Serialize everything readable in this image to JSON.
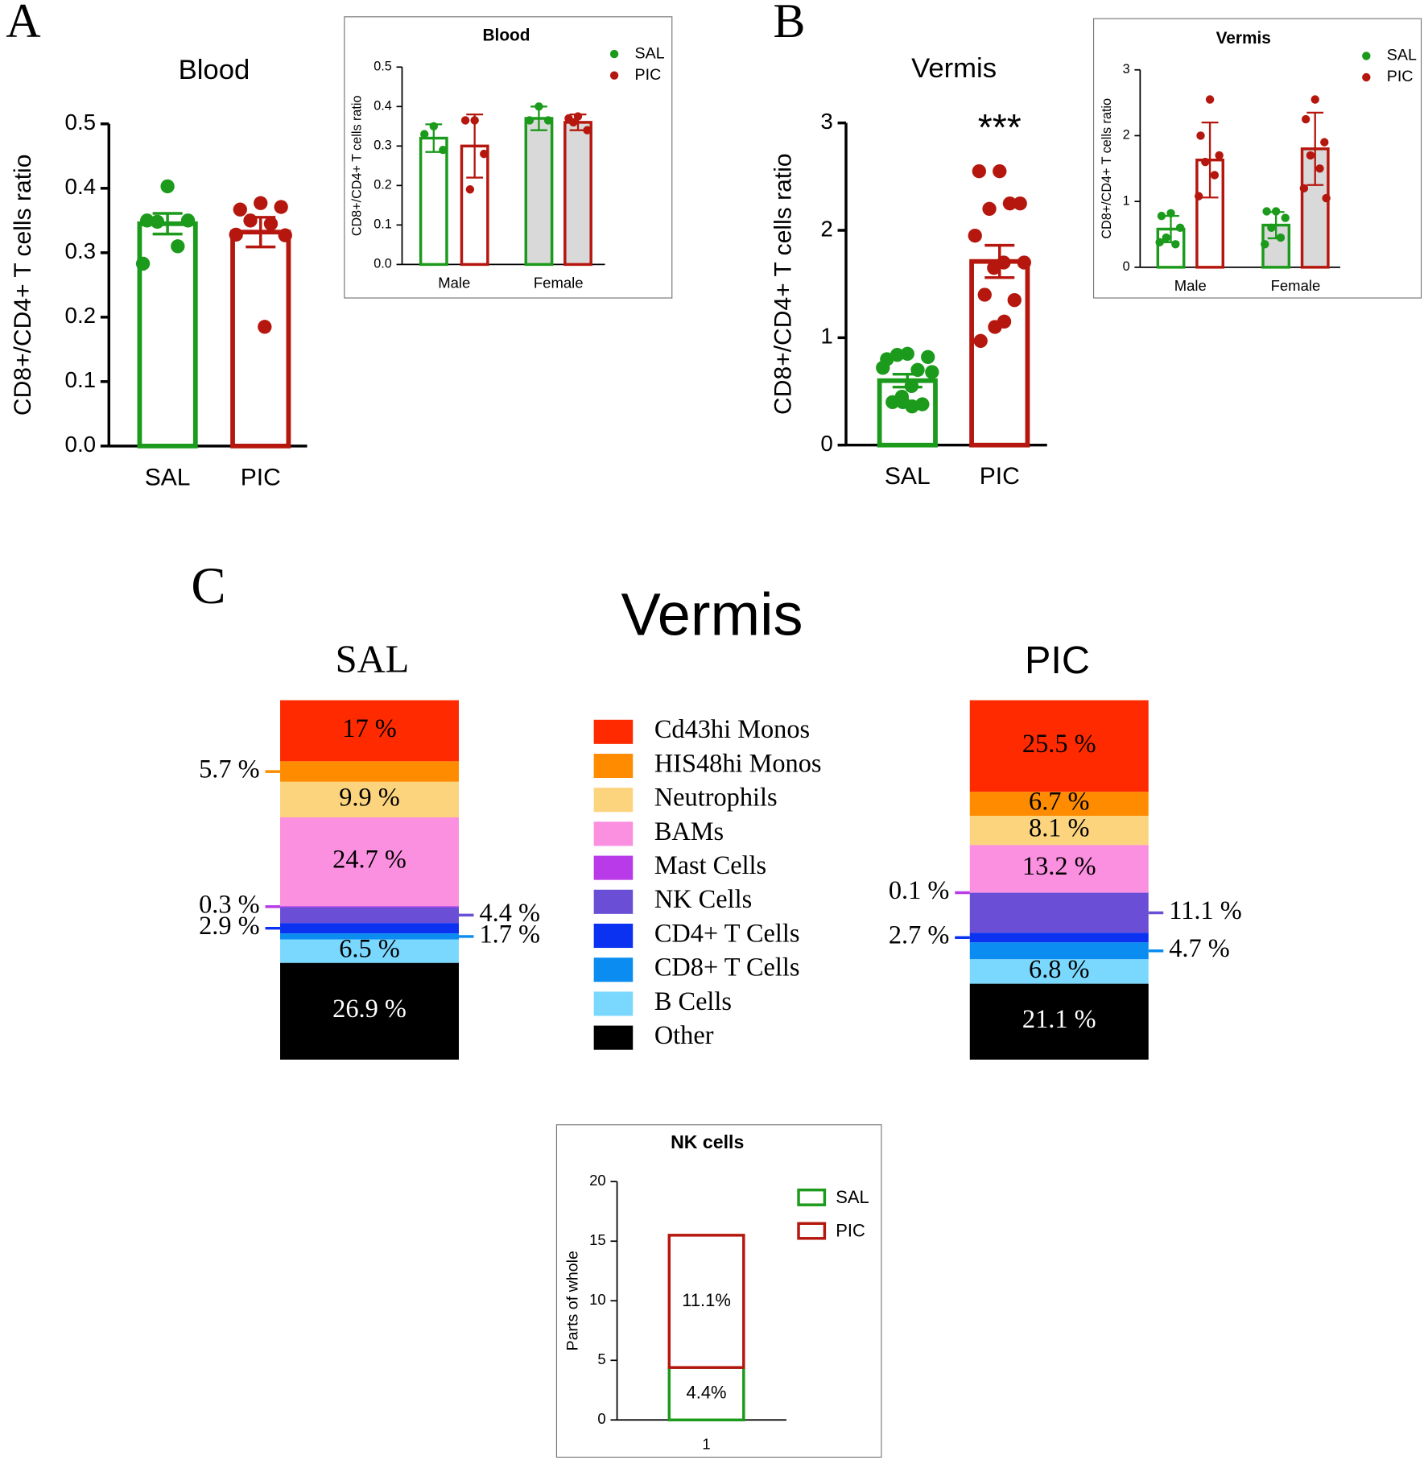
{
  "chart_data": [
    {
      "type": "bar-scatter",
      "panel": "A",
      "title": "Blood",
      "y_label": "CD8+/CD4+ T cells ratio",
      "categories": [
        "SAL",
        "PIC"
      ],
      "colors": [
        "#1b9a1b",
        "#b5170e"
      ],
      "values": [
        0.345,
        0.332
      ],
      "errors": [
        0.016,
        0.023
      ],
      "points": [
        [
          0.403,
          0.35,
          0.35,
          0.348,
          0.31,
          0.283
        ],
        [
          0.377,
          0.367,
          0.371,
          0.35,
          0.345,
          0.328,
          0.327,
          0.185
        ]
      ],
      "ylim": [
        0,
        0.5
      ],
      "yticks": [
        {
          "value": 0,
          "label": "0.0"
        },
        0.1,
        0.2,
        0.3,
        0.4,
        0.5
      ]
    },
    {
      "type": "grouped-bar-scatter",
      "title": "Blood",
      "y_label": "CD8+/CD4+ T cells ratio",
      "categories": [
        "Male",
        "Female"
      ],
      "category_fills": [
        "#ffffff",
        "#d9d9d9"
      ],
      "series": [
        {
          "name": "SAL",
          "color": "#1b9a1b",
          "values": [
            0.32,
            0.37
          ],
          "errors": [
            0.035,
            0.03
          ],
          "points": [
            [
              0.35,
              0.33,
              0.29
            ],
            [
              0.4,
              0.365,
              0.365
            ]
          ]
        },
        {
          "name": "PIC",
          "color": "#b5170e",
          "values": [
            0.3,
            0.36
          ],
          "errors": [
            0.08,
            0.02
          ],
          "points": [
            [
              0.365,
              0.365,
              0.28,
              0.19
            ],
            [
              0.375,
              0.37,
              0.34,
              0.36
            ]
          ]
        }
      ],
      "ylim": [
        0,
        0.5
      ],
      "yticks": [
        {
          "value": 0,
          "label": "0.0"
        },
        0.1,
        0.2,
        0.3,
        0.4,
        0.5
      ]
    },
    {
      "type": "bar-scatter",
      "panel": "B",
      "title": "Vermis",
      "y_label": "CD8+/CD4+ T cells ratio",
      "annotation": "***",
      "categories": [
        "SAL",
        "PIC"
      ],
      "colors": [
        "#1b9a1b",
        "#b5170e"
      ],
      "values": [
        0.6,
        1.71
      ],
      "errors": [
        0.06,
        0.15
      ],
      "points": [
        [
          0.85,
          0.8,
          0.82,
          0.84,
          0.7,
          0.72,
          0.68,
          0.55,
          0.45,
          0.4,
          0.38,
          0.4,
          0.36
        ],
        [
          2.55,
          2.55,
          2.25,
          2.2,
          2.25,
          1.95,
          1.7,
          1.7,
          1.65,
          1.4,
          1.35,
          1.1,
          1.15,
          0.97
        ]
      ],
      "ylim": [
        0,
        3
      ],
      "yticks": [
        0,
        1,
        2,
        3
      ]
    },
    {
      "type": "grouped-bar-scatter",
      "title": "Vermis",
      "y_label": "CD8+/CD4+ T cells ratio",
      "categories": [
        "Male",
        "Female"
      ],
      "category_fills": [
        "#ffffff",
        "#d9d9d9"
      ],
      "series": [
        {
          "name": "SAL",
          "color": "#1b9a1b",
          "values": [
            0.58,
            0.64
          ],
          "errors": [
            0.2,
            0.2
          ],
          "points": [
            [
              0.82,
              0.78,
              0.6,
              0.45,
              0.35,
              0.38
            ],
            [
              0.85,
              0.85,
              0.75,
              0.6,
              0.45,
              0.35
            ]
          ]
        },
        {
          "name": "PIC",
          "color": "#b5170e",
          "values": [
            1.63,
            1.8
          ],
          "errors": [
            0.57,
            0.55
          ],
          "points": [
            [
              2.55,
              2.0,
              1.7,
              1.6,
              1.4,
              1.08
            ],
            [
              2.55,
              2.25,
              1.9,
              1.7,
              1.5,
              1.2,
              1.05
            ]
          ]
        }
      ],
      "ylim": [
        0,
        3
      ],
      "yticks": [
        0,
        1,
        2,
        3
      ]
    },
    {
      "type": "stacked-bar",
      "panel": "C",
      "title": "Vermis",
      "categories": [
        "SAL",
        "PIC"
      ],
      "series": [
        {
          "name": "Cd43hi Monos",
          "color": "#ff2a00",
          "values": [
            17,
            25.5
          ],
          "value_labels": [
            "17 %",
            "25.5 %"
          ]
        },
        {
          "name": "HIS48hi Monos",
          "color": "#ff8c00",
          "values": [
            5.7,
            6.7
          ],
          "value_labels": [
            "5.7 %",
            "6.7 %"
          ]
        },
        {
          "name": "Neutrophils",
          "color": "#fdd47e",
          "values": [
            9.9,
            8.1
          ],
          "value_labels": [
            "9.9 %",
            "8.1 %"
          ]
        },
        {
          "name": "BAMs",
          "color": "#fb8fe0",
          "values": [
            24.7,
            13.2
          ],
          "value_labels": [
            "24.7 %",
            "13.2 %"
          ]
        },
        {
          "name": "Mast Cells",
          "color": "#b93ae8",
          "values": [
            0.3,
            0.1
          ],
          "value_labels": [
            "0.3 %",
            "0.1 %"
          ]
        },
        {
          "name": "NK Cells",
          "color": "#6a4fd6",
          "values": [
            4.4,
            11.1
          ],
          "value_labels": [
            "4.4 %",
            "11.1 %"
          ]
        },
        {
          "name": "CD4+ T Cells",
          "color": "#0a32f0",
          "values": [
            2.9,
            2.7
          ],
          "value_labels": [
            "2.9 %",
            "2.7 %"
          ]
        },
        {
          "name": "CD8+ T Cells",
          "color": "#0a8cf0",
          "values": [
            1.7,
            4.7
          ],
          "value_labels": [
            "1.7 %",
            "4.7 %"
          ]
        },
        {
          "name": "B Cells",
          "color": "#7ad8ff",
          "values": [
            6.5,
            6.8
          ],
          "value_labels": [
            "6.5 %",
            "6.8 %"
          ]
        },
        {
          "name": "Other",
          "color": "#000000",
          "values": [
            26.9,
            21.1
          ],
          "value_labels": [
            "26.9 %",
            "21.1 %"
          ]
        }
      ]
    },
    {
      "type": "stacked-outline-bar",
      "title": "NK cells",
      "y_label": "Parts of whole",
      "categories": [
        "1"
      ],
      "series": [
        {
          "name": "SAL",
          "color": "#1b9a1b",
          "values": [
            4.4
          ],
          "value_labels": [
            "4.4%"
          ]
        },
        {
          "name": "PIC",
          "color": "#b5170e",
          "values": [
            11.1
          ],
          "value_labels": [
            "11.1%"
          ]
        }
      ],
      "ylim": [
        0,
        20
      ],
      "yticks": [
        0,
        5,
        10,
        15,
        20
      ]
    }
  ]
}
